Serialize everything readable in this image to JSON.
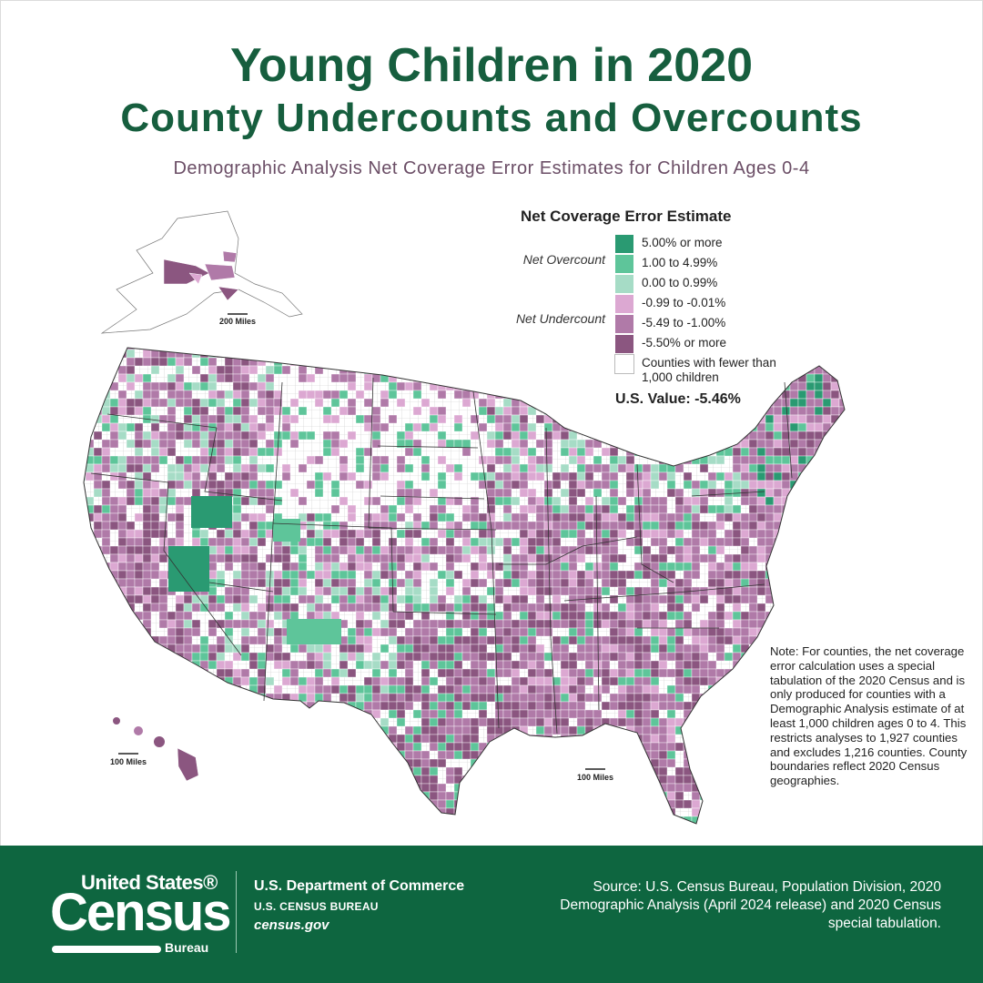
{
  "title": "Young Children in 2020",
  "subtitle": "County Undercounts and Overcounts",
  "description": "Demographic Analysis Net Coverage Error Estimates for Children Ages 0-4",
  "legend": {
    "title": "Net Coverage Error Estimate",
    "group_over": "Net Overcount",
    "group_under": "Net Undercount",
    "items": [
      {
        "label": "5.00% or more",
        "color": "#2a9a72"
      },
      {
        "label": "1.00 to 4.99%",
        "color": "#5ec59a"
      },
      {
        "label": "0.00 to 0.99%",
        "color": "#a6dcc6"
      },
      {
        "label": "-0.99 to -0.01%",
        "color": "#dca8d2"
      },
      {
        "label": "-5.49 to -1.00%",
        "color": "#b07aa8"
      },
      {
        "label": "-5.50% or more",
        "color": "#8b5680"
      },
      {
        "label": "Counties with fewer than 1,000 children",
        "color": "#ffffff"
      }
    ]
  },
  "us_value": "U.S. Value: -5.46%",
  "scales": {
    "alaska": "200 Miles",
    "hawaii": "100 Miles",
    "mainland": "100 Miles"
  },
  "note": "Note: For counties, the net coverage error calculation uses a special tabulation of the 2020 Census and is only produced for counties with a Demographic Analysis estimate of at least 1,000 children ages 0 to 4. This restricts analyses to 1,927 counties and excludes 1,216 counties. County boundaries reflect 2020 Census geographies.",
  "footer": {
    "logo_top": "United States®",
    "logo_census": "Census",
    "logo_bureau": "Bureau",
    "dept": "U.S. Department of Commerce",
    "bureau": "U.S. CENSUS BUREAU",
    "site": "census.gov",
    "source": "Source: U.S. Census Bureau, Population Division, 2020 Demographic Analysis (April 2024 release) and 2020 Census special tabulation."
  }
}
